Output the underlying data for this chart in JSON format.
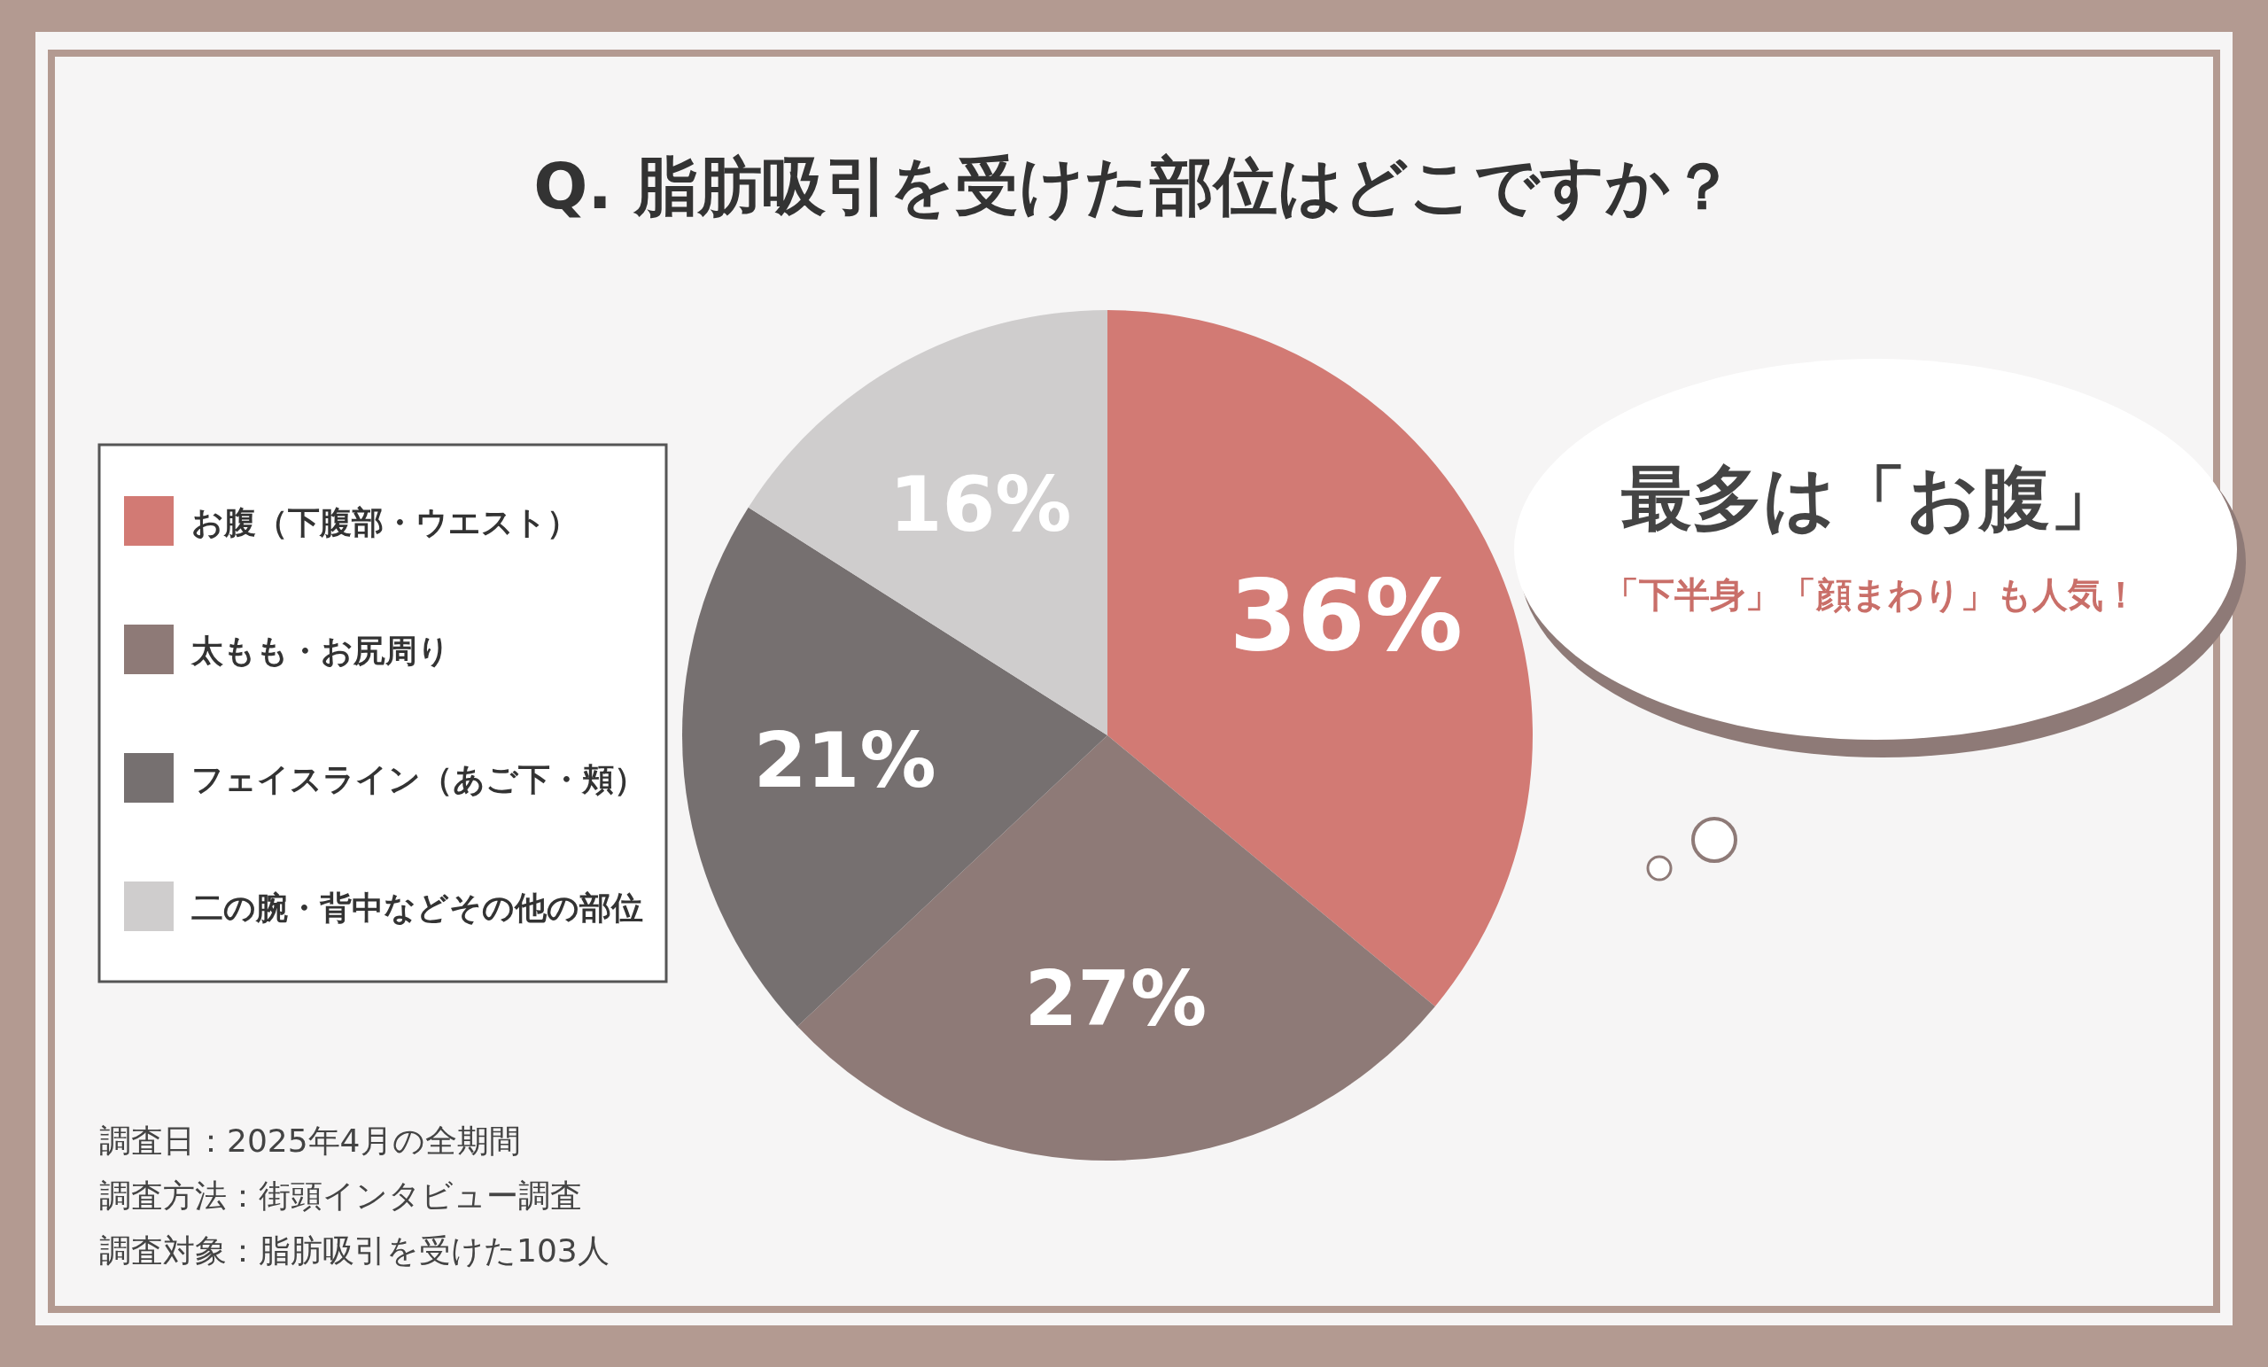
{
  "chart_data": {
    "type": "pie",
    "title": "Q. 脂肪吸引を受けた部位はどこですか？",
    "categories": [
      "お腹（下腹部・ウエスト）",
      "太もも・お尻周り",
      "フェイスライン（あご下・頬）",
      "二の腕・背中などその他の部位"
    ],
    "values": [
      36,
      27,
      21,
      16
    ],
    "colors": [
      "#d27a74",
      "#8e7a77",
      "#767070",
      "#cfcdcd"
    ],
    "value_labels": [
      "36%",
      "27%",
      "21%",
      "16%"
    ],
    "legend": "left",
    "annotations": [
      "最多は「お腹」",
      "「下半身」「顔まわり」も人気！",
      "調査日：2025年4月の全期間",
      "調査方法：街頭インタビュー調査",
      "調査対象：脂肪吸引を受けた103人"
    ]
  }
}
